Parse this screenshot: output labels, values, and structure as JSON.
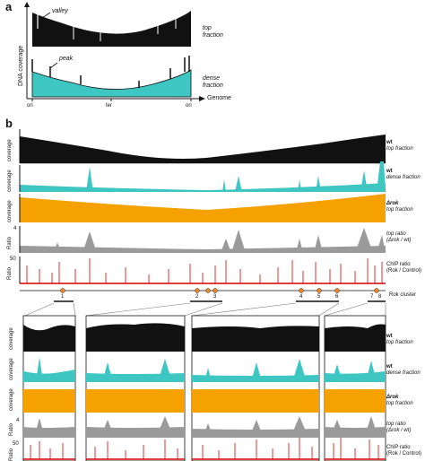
{
  "panel_a": {
    "letter": "a",
    "y_label": "DNA coverage",
    "valley_label": "valley",
    "peak_label": "peak",
    "top_fraction_label": "top fraction",
    "dense_fraction_label": "dense fraction",
    "x_ticks": [
      "ori",
      "ter",
      "ori"
    ],
    "x_label": "Genome",
    "colors": {
      "top": "#111111",
      "dense": "#3ec6c2"
    }
  },
  "panel_b": {
    "letter": "b",
    "tracks": [
      {
        "y_label": "coverage",
        "name": "wt",
        "sub": "top fraction",
        "color": "#111111"
      },
      {
        "y_label": "coverage",
        "name": "wt",
        "sub": "dense fraction",
        "color": "#3ec6c2"
      },
      {
        "y_label": "coverage",
        "name": "Δrok",
        "sub": "top fraction",
        "color": "#f5a100"
      },
      {
        "y_label": "Ratio",
        "name": "top ratio",
        "sub": "(Δrok / wt)",
        "color": "#9a9a9a",
        "ytick": "4"
      },
      {
        "y_label": "Ratio",
        "name": "ChIP ratio",
        "sub": "(Rok / Control)",
        "color": "#d40000",
        "ytick": "50"
      }
    ],
    "cluster_label": "Rok cluster",
    "clusters": [
      "1",
      "2",
      "3",
      "4",
      "5",
      "6",
      "7",
      "8"
    ],
    "zoom_ytick_ratio": "4",
    "zoom_ytick_chip": "50",
    "colors": {
      "cluster_dot": "#e8872a"
    }
  }
}
